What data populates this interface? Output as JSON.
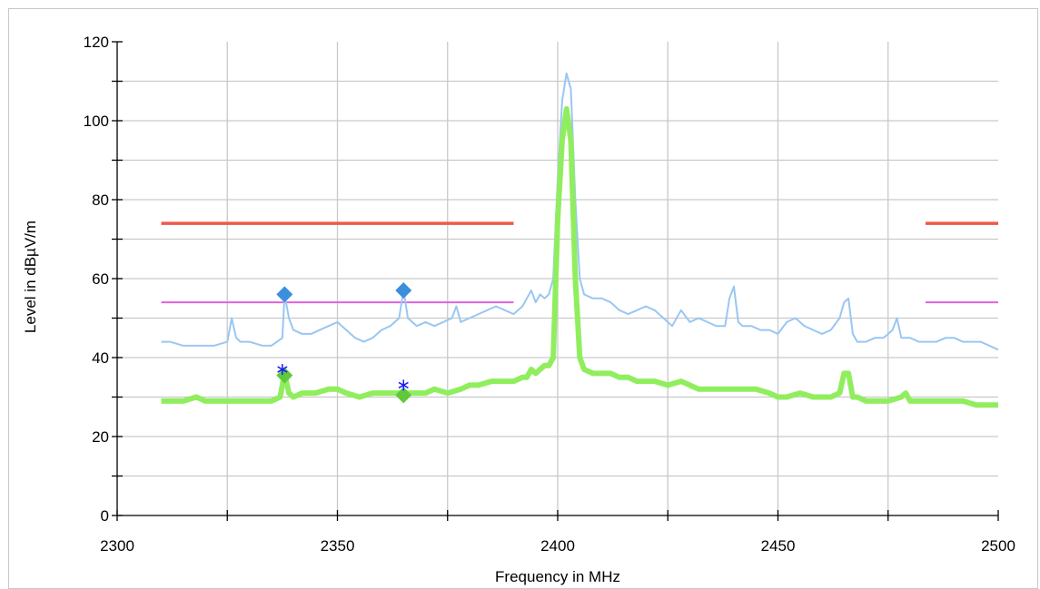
{
  "chart_data": {
    "type": "line",
    "xlabel": "Frequency in MHz",
    "ylabel": "Level in dBµV/m",
    "xlim": [
      2300,
      2500
    ],
    "ylim": [
      0,
      120
    ],
    "x_ticks": [
      2300,
      2350,
      2400,
      2450,
      2500
    ],
    "y_ticks": [
      0,
      20,
      40,
      60,
      80,
      100,
      120
    ],
    "x_ticks_labels": [
      "2300",
      "2350",
      "2400",
      "2450",
      "2500"
    ],
    "y_ticks_labels": [
      "0",
      "20",
      "40",
      "60",
      "80",
      "100",
      "120"
    ],
    "grid": true,
    "limit_lines": [
      {
        "color": "#ee5a4a",
        "value": 74,
        "segments": [
          [
            2310,
            2390
          ],
          [
            2483.5,
            2500
          ]
        ]
      },
      {
        "color": "#e062e0",
        "value": 54,
        "segments": [
          [
            2310,
            2390
          ],
          [
            2483.5,
            2500
          ]
        ]
      }
    ],
    "series": [
      {
        "color": "#99c7f2",
        "x": [
          2310,
          2312,
          2315,
          2318,
          2320,
          2322,
          2325,
          2326,
          2327,
          2328,
          2330,
          2333,
          2335,
          2337.5,
          2338,
          2339,
          2340,
          2342,
          2344,
          2346,
          2348,
          2350,
          2352,
          2354,
          2356,
          2358,
          2360,
          2362,
          2364,
          2365,
          2366,
          2368,
          2370,
          2372,
          2374,
          2376,
          2377,
          2378,
          2380,
          2382,
          2384,
          2386,
          2388,
          2390,
          2392,
          2393,
          2394,
          2395,
          2396,
          2397,
          2398,
          2399,
          2400,
          2401,
          2402,
          2403,
          2404,
          2405,
          2406,
          2408,
          2410,
          2412,
          2414,
          2416,
          2418,
          2420,
          2422,
          2424,
          2426,
          2428,
          2430,
          2432,
          2434,
          2436,
          2438,
          2439,
          2440,
          2441,
          2442,
          2444,
          2446,
          2448,
          2450,
          2452,
          2454,
          2456,
          2458,
          2460,
          2462,
          2464,
          2465,
          2466,
          2467,
          2468,
          2470,
          2472,
          2474,
          2476,
          2477,
          2478,
          2480,
          2482,
          2484,
          2486,
          2488,
          2490,
          2492,
          2494,
          2496,
          2498,
          2500
        ],
        "y": [
          44,
          44,
          43,
          43,
          43,
          43,
          44,
          50,
          45,
          44,
          44,
          43,
          43,
          45,
          56,
          50,
          47,
          46,
          46,
          47,
          48,
          49,
          47,
          45,
          44,
          45,
          47,
          48,
          50,
          57,
          50,
          48,
          49,
          48,
          49,
          50,
          53,
          49,
          50,
          51,
          52,
          53,
          52,
          51,
          53,
          55,
          57,
          54,
          56,
          55,
          56,
          60,
          85,
          105,
          112,
          108,
          80,
          60,
          56,
          55,
          55,
          54,
          52,
          51,
          52,
          53,
          52,
          50,
          48,
          52,
          49,
          50,
          49,
          48,
          48,
          55,
          58,
          49,
          48,
          48,
          47,
          47,
          46,
          49,
          50,
          48,
          47,
          46,
          47,
          50,
          54,
          55,
          46,
          44,
          44,
          45,
          45,
          47,
          50,
          45,
          45,
          44,
          44,
          44,
          45,
          45,
          44,
          44,
          44,
          43,
          42
        ]
      },
      {
        "color": "#90ee5e",
        "x": [
          2310,
          2312,
          2315,
          2318,
          2320,
          2322,
          2325,
          2328,
          2330,
          2333,
          2335,
          2337,
          2338,
          2339,
          2340,
          2342,
          2345,
          2348,
          2350,
          2352,
          2355,
          2358,
          2360,
          2362,
          2365,
          2368,
          2370,
          2372,
          2375,
          2378,
          2380,
          2382,
          2385,
          2388,
          2390,
          2392,
          2393,
          2394,
          2395,
          2396,
          2397,
          2398,
          2399,
          2400,
          2401,
          2402,
          2403,
          2404,
          2405,
          2406,
          2408,
          2410,
          2412,
          2414,
          2416,
          2418,
          2420,
          2422,
          2425,
          2428,
          2430,
          2432,
          2435,
          2438,
          2440,
          2442,
          2445,
          2448,
          2450,
          2452,
          2455,
          2458,
          2460,
          2462,
          2464,
          2465,
          2466,
          2467,
          2468,
          2470,
          2472,
          2475,
          2478,
          2479,
          2480,
          2482,
          2485,
          2488,
          2490,
          2492,
          2495,
          2498,
          2500
        ],
        "y": [
          29,
          29,
          29,
          30,
          29,
          29,
          29,
          29,
          29,
          29,
          29,
          30,
          36,
          31,
          30,
          31,
          31,
          32,
          32,
          31,
          30,
          31,
          31,
          31,
          31,
          31,
          31,
          32,
          31,
          32,
          33,
          33,
          34,
          34,
          34,
          35,
          35,
          37,
          36,
          37,
          38,
          38,
          40,
          75,
          95,
          103,
          95,
          60,
          40,
          37,
          36,
          36,
          36,
          35,
          35,
          34,
          34,
          34,
          33,
          34,
          33,
          32,
          32,
          32,
          32,
          32,
          32,
          31,
          30,
          30,
          31,
          30,
          30,
          30,
          31,
          36,
          36,
          30,
          30,
          29,
          29,
          29,
          30,
          31,
          29,
          29,
          29,
          29,
          29,
          29,
          28,
          28,
          28
        ]
      }
    ],
    "markers": [
      {
        "shape": "diamond",
        "color": "#3b8fdc",
        "x": 2338,
        "y": 56
      },
      {
        "shape": "diamond",
        "color": "#3b8fdc",
        "x": 2365,
        "y": 57
      },
      {
        "shape": "diamond",
        "color": "#5fc93a",
        "x": 2338,
        "y": 35.5
      },
      {
        "shape": "diamond",
        "color": "#5fc93a",
        "x": 2365,
        "y": 30.5
      },
      {
        "shape": "asterisk",
        "color": "#1a1aff",
        "x": 2337.5,
        "y": 37
      },
      {
        "shape": "asterisk",
        "color": "#1a1aff",
        "x": 2365,
        "y": 33
      }
    ]
  }
}
